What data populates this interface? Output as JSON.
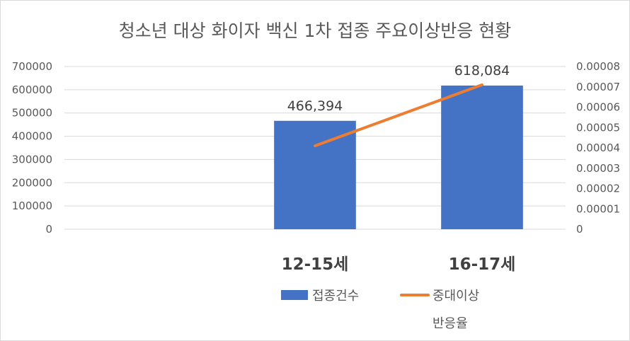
{
  "chart_data": {
    "type": "bar",
    "title": "청소년  대상 화이자 백신 1차 접종 주요이상반응 현황",
    "categories": [
      "",
      "12-15세",
      "16-17세"
    ],
    "series": [
      {
        "name": "접종건수",
        "kind": "bar",
        "axis": "left",
        "color": "#4472C4",
        "values": [
          null,
          466394,
          618084
        ],
        "labels": [
          "",
          "466,394",
          "618,084"
        ]
      },
      {
        "name": "중대이상반응율",
        "name_lines": [
          "중대이상",
          "반응율"
        ],
        "kind": "line",
        "axis": "right",
        "color": "#ED7D31",
        "values": [
          null,
          4.1e-05,
          7.1e-05
        ]
      }
    ],
    "y_left": {
      "ylim": [
        0,
        700000
      ],
      "ticks": [
        0,
        100000,
        200000,
        300000,
        400000,
        500000,
        600000,
        700000
      ],
      "tick_labels": [
        "0",
        "100000",
        "200000",
        "300000",
        "400000",
        "500000",
        "600000",
        "700000"
      ]
    },
    "y_right": {
      "ylim": [
        0,
        8e-05
      ],
      "ticks": [
        0,
        1e-05,
        2e-05,
        3e-05,
        4e-05,
        5e-05,
        6e-05,
        7e-05,
        8e-05
      ],
      "tick_labels": [
        "0",
        "0.00001",
        "0.00002",
        "0.00003",
        "0.00004",
        "0.00005",
        "0.00006",
        "0.00007",
        "0.00008"
      ]
    },
    "grid": true,
    "legend_position": "bottom"
  }
}
